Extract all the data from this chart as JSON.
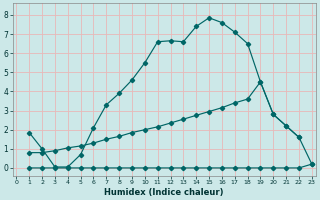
{
  "xlabel": "Humidex (Indice chaleur)",
  "bg_color": "#cce8e8",
  "grid_color": "#e8b8b8",
  "line_color": "#006666",
  "line1_x": [
    1,
    2,
    3,
    4,
    5,
    6,
    7,
    8,
    9,
    10,
    11,
    12,
    13,
    14,
    15,
    16,
    17,
    18,
    19,
    20,
    21,
    22
  ],
  "line1_y": [
    1.85,
    1.0,
    0.05,
    0.05,
    0.7,
    2.1,
    3.3,
    3.9,
    4.6,
    5.5,
    6.6,
    6.65,
    6.6,
    7.4,
    7.85,
    7.6,
    7.1,
    6.5,
    4.5,
    2.8,
    2.2,
    1.6
  ],
  "line2_x": [
    1,
    2,
    3,
    4,
    5,
    6,
    7,
    8,
    9,
    10,
    11,
    12,
    13,
    14,
    15,
    16,
    17,
    18,
    19,
    20,
    21,
    22,
    23
  ],
  "line2_y": [
    0.8,
    0.8,
    0.9,
    1.05,
    1.15,
    1.3,
    1.5,
    1.65,
    1.85,
    2.0,
    2.15,
    2.35,
    2.55,
    2.75,
    2.95,
    3.15,
    3.4,
    3.6,
    4.5,
    2.8,
    2.2,
    1.6,
    0.2
  ],
  "line3_x": [
    1,
    2,
    3,
    4,
    5,
    6,
    7,
    8,
    9,
    10,
    11,
    12,
    13,
    14,
    15,
    16,
    17,
    18,
    19,
    20,
    21,
    22,
    23
  ],
  "line3_y": [
    0.0,
    0.0,
    0.0,
    0.0,
    0.0,
    0.0,
    0.0,
    0.0,
    0.0,
    0.0,
    0.0,
    0.0,
    0.0,
    0.0,
    0.0,
    0.0,
    0.0,
    0.0,
    0.0,
    0.0,
    0.0,
    0.0,
    0.2
  ],
  "xlim": [
    -0.3,
    23.3
  ],
  "ylim": [
    -0.4,
    8.6
  ],
  "xticks": [
    0,
    1,
    2,
    3,
    4,
    5,
    6,
    7,
    8,
    9,
    10,
    11,
    12,
    13,
    14,
    15,
    16,
    17,
    18,
    19,
    20,
    21,
    22,
    23
  ],
  "yticks": [
    0,
    1,
    2,
    3,
    4,
    5,
    6,
    7,
    8
  ]
}
